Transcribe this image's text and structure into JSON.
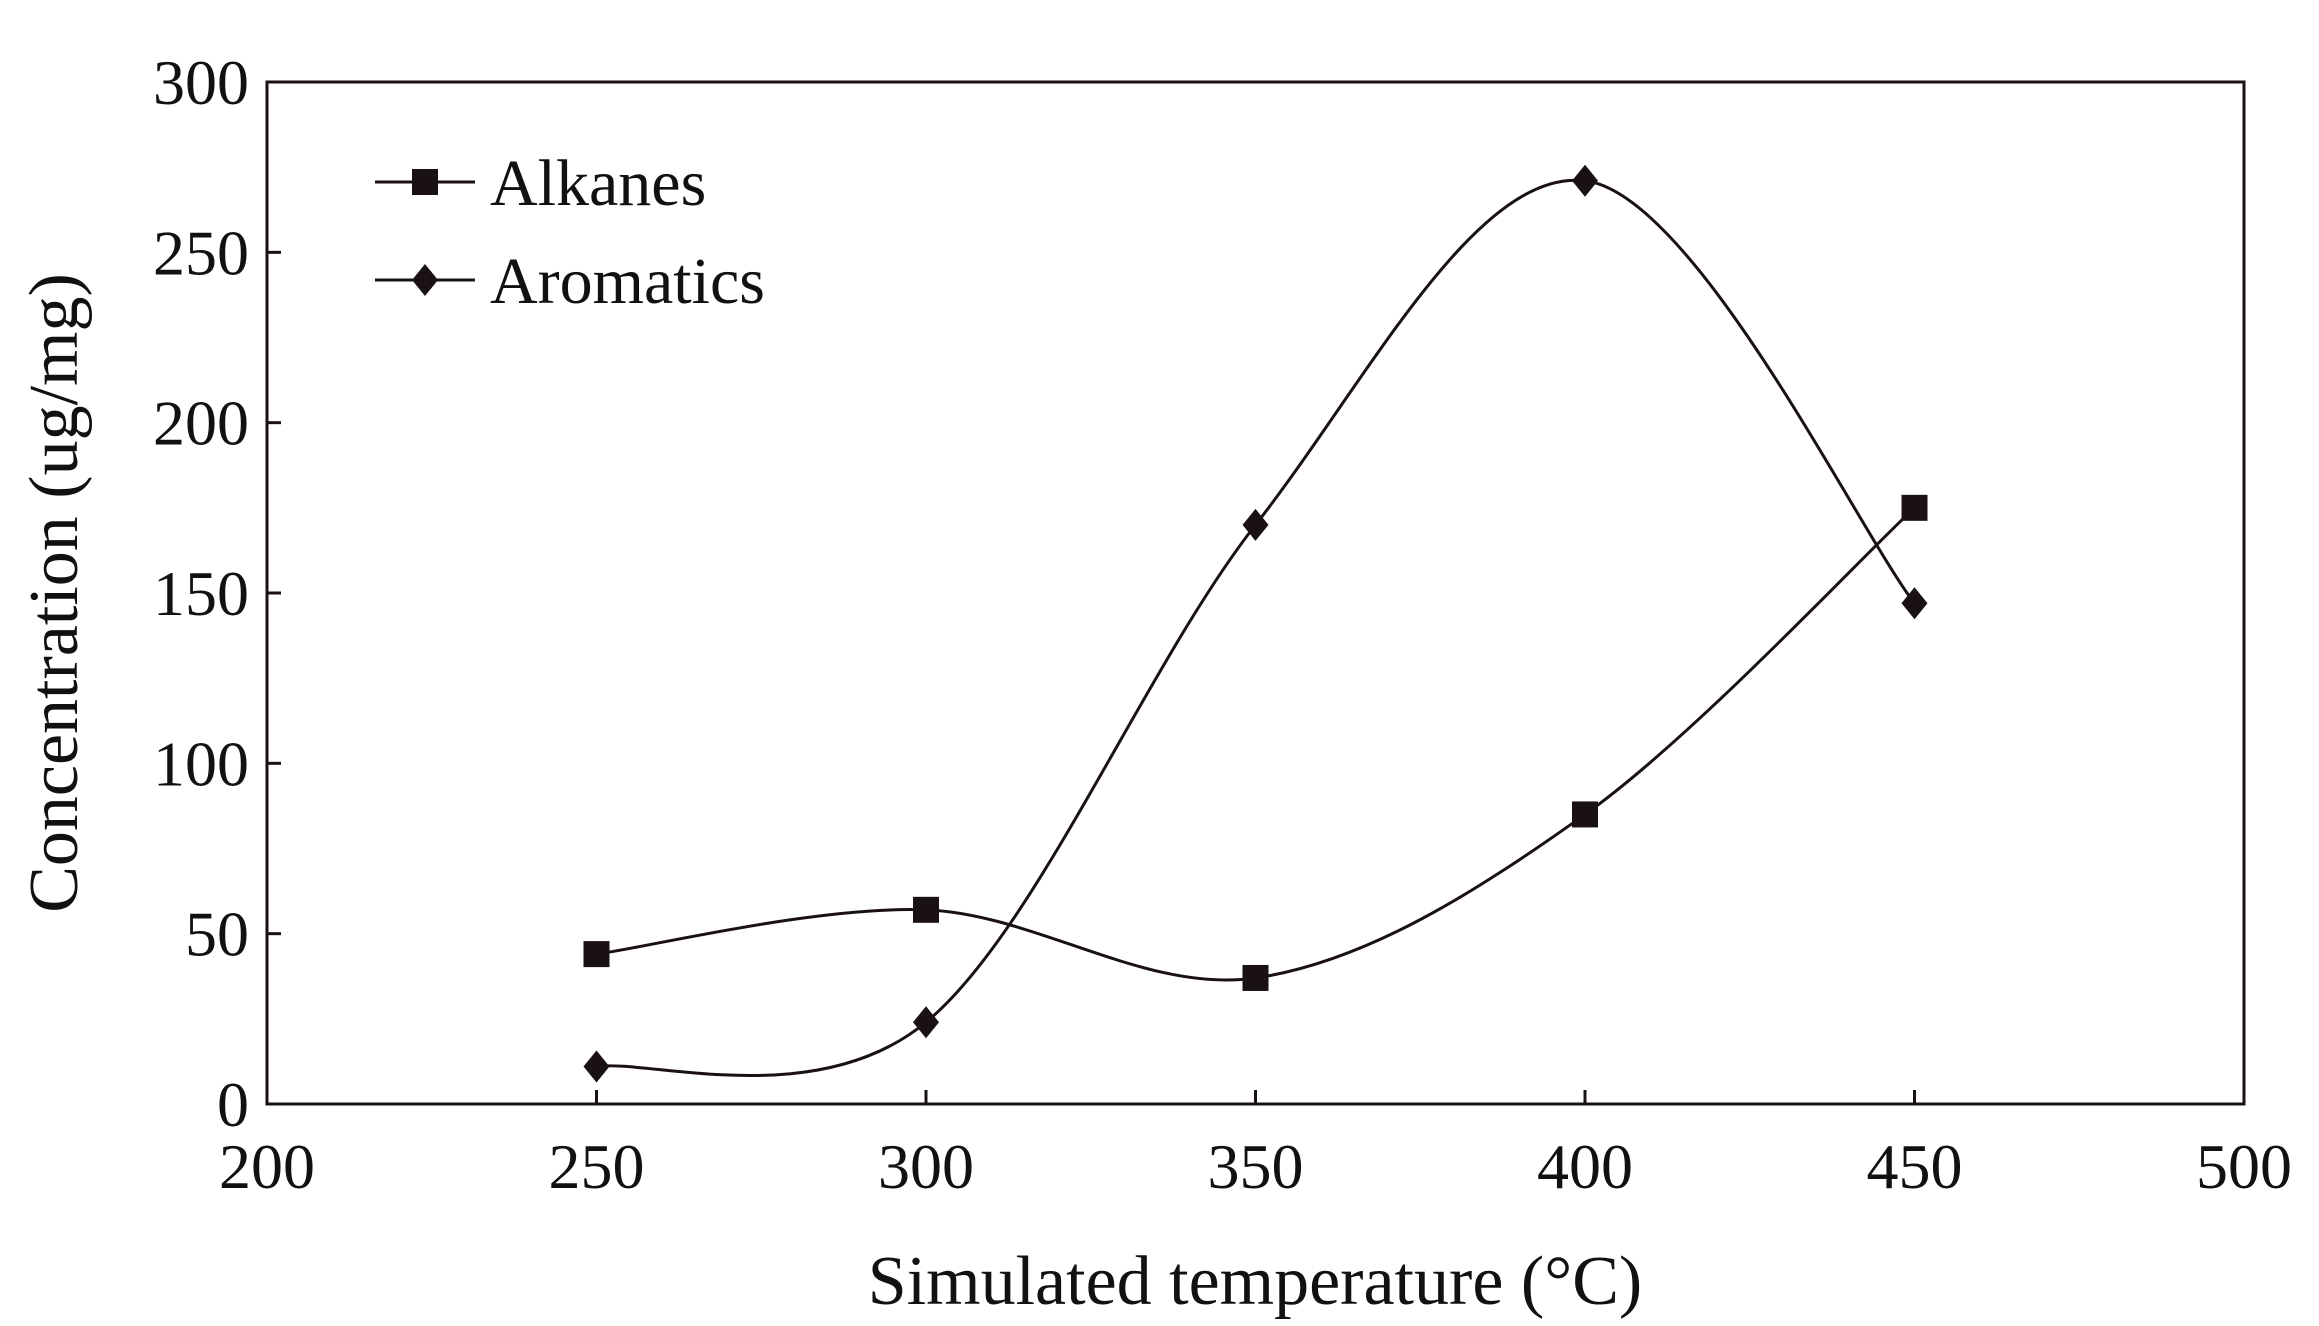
{
  "chart_data": {
    "type": "line",
    "xlabel": "Simulated temperature (°C)",
    "ylabel": "Concentration (ug/mg)",
    "xlim": [
      200,
      500
    ],
    "ylim": [
      0,
      300
    ],
    "x_ticks": [
      "200",
      "250",
      "300",
      "350",
      "400",
      "450",
      "500"
    ],
    "y_ticks": [
      "0",
      "50",
      "100",
      "150",
      "200",
      "250",
      "300"
    ],
    "grid": false,
    "legend_position": "top-left",
    "x": [
      250,
      300,
      350,
      400,
      450
    ],
    "series": [
      {
        "name": "Alkanes",
        "marker": "square",
        "color": "#1a1212",
        "values": [
          44,
          57,
          37,
          85,
          175
        ]
      },
      {
        "name": "Aromatics",
        "marker": "diamond",
        "color": "#1a1212",
        "values": [
          11,
          24,
          170,
          271,
          147
        ]
      }
    ]
  }
}
